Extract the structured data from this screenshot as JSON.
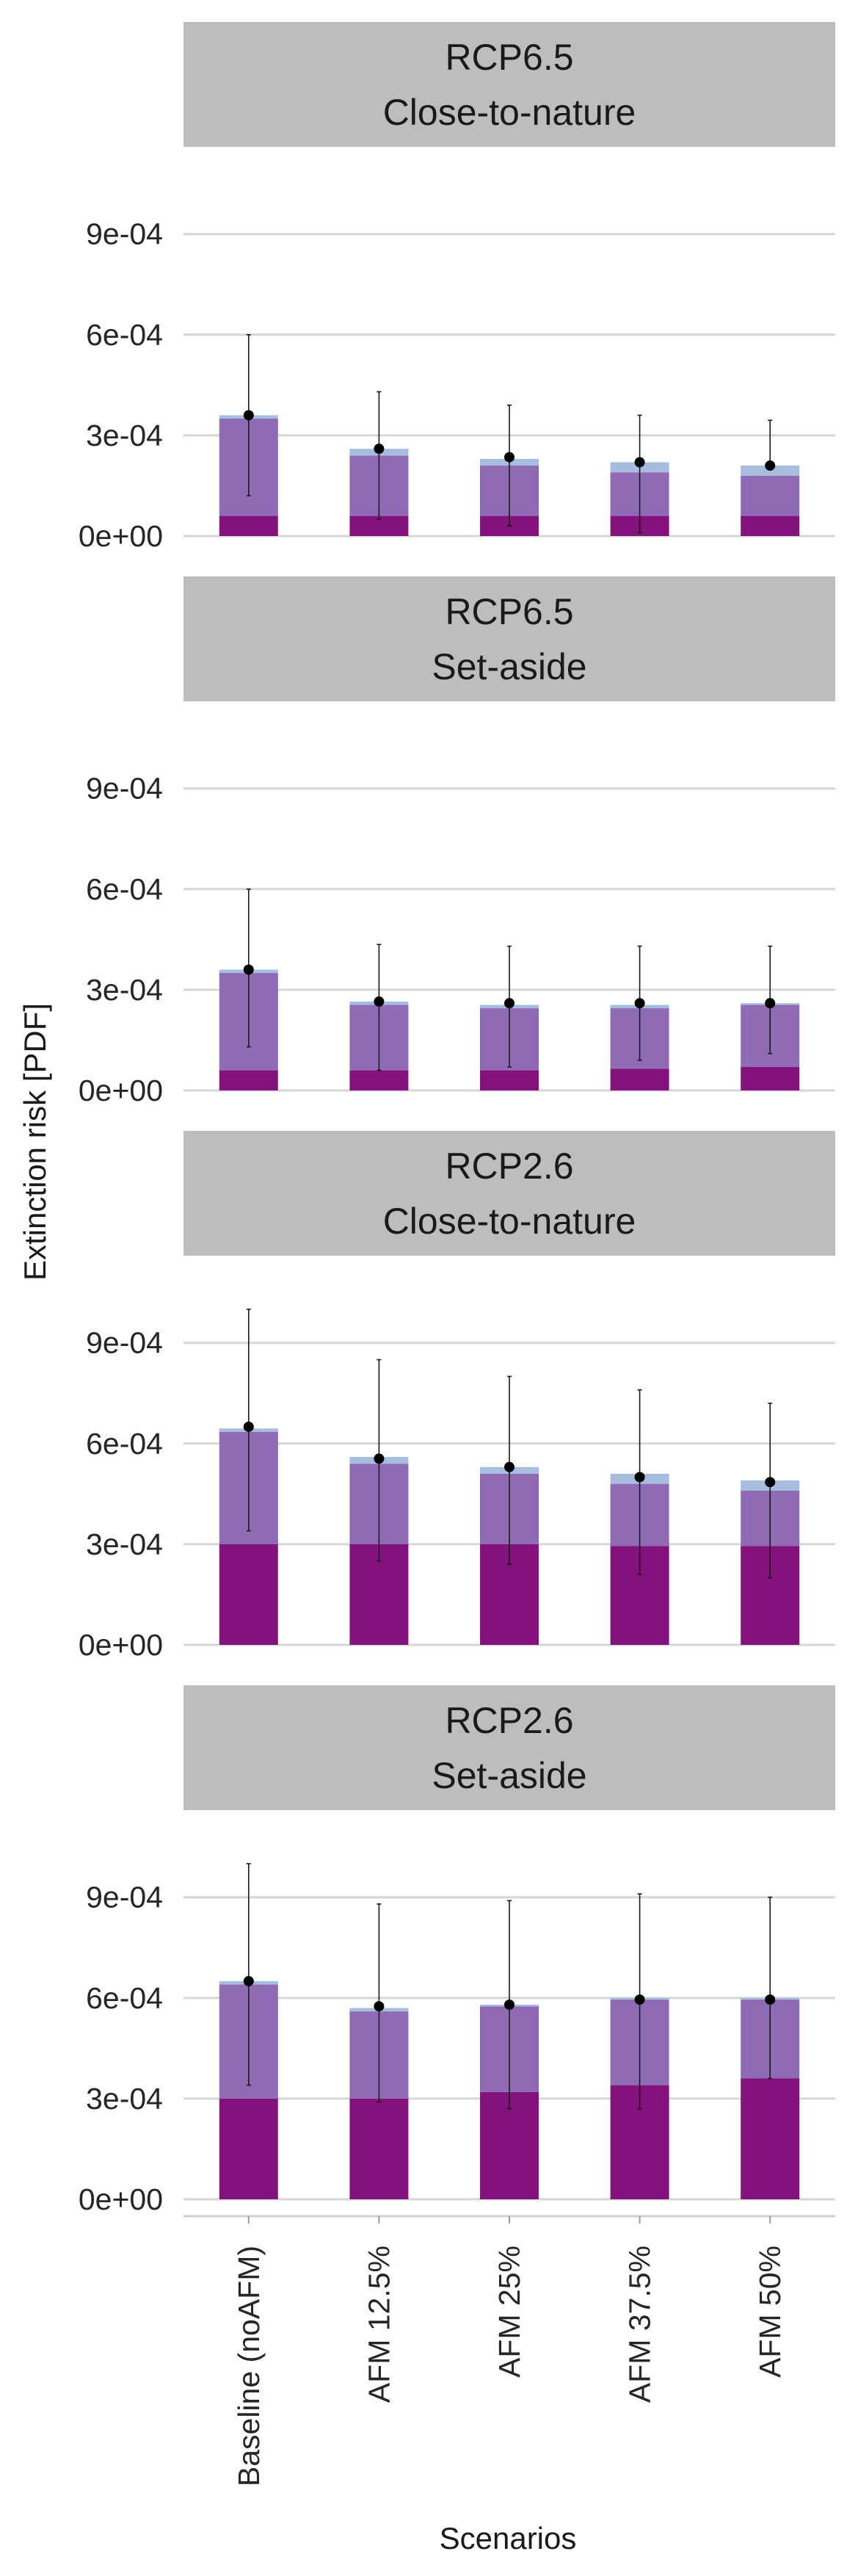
{
  "chart_data": {
    "type": "bar",
    "stacked": true,
    "xlabel": "Scenarios",
    "ylabel": "Extinction risk [PDF]",
    "ylim": [
      0,
      0.00106
    ],
    "y_ticks": [
      {
        "value": 0,
        "label": "0e+00"
      },
      {
        "value": 0.0003,
        "label": "3e-04"
      },
      {
        "value": 0.0006,
        "label": "6e-04"
      },
      {
        "value": 0.0009,
        "label": "9e-04"
      }
    ],
    "categories": [
      "Baseline (noAFM)",
      "AFM 12.5%",
      "AFM 25%",
      "AFM 37.5%",
      "AFM 50%"
    ],
    "colors": {
      "bottom": "#84127c",
      "middle": "#8e6bb4",
      "top": "#a6bde0",
      "strip": "#bdbdbd",
      "grid": "#d6d6d6",
      "error": "#1a1a1a",
      "point": "#000000"
    },
    "grid": true,
    "legend": "none",
    "panels": [
      {
        "strip_line1": "RCP6.5",
        "strip_line2": "Close-to-nature",
        "bottom": [
          6e-05,
          6e-05,
          6e-05,
          6e-05,
          6e-05
        ],
        "middle": [
          0.00029,
          0.00018,
          0.00015,
          0.00013,
          0.00012
        ],
        "top": [
          1e-05,
          2e-05,
          2e-05,
          3e-05,
          3e-05
        ],
        "point": [
          0.00036,
          0.00026,
          0.000235,
          0.00022,
          0.00021
        ],
        "err_low": [
          0.00012,
          5e-05,
          3e-05,
          1e-05,
          0.00021
        ],
        "err_high": [
          0.0006,
          0.00043,
          0.00039,
          0.00036,
          0.000345
        ]
      },
      {
        "strip_line1": "RCP6.5",
        "strip_line2": "Set-aside",
        "bottom": [
          6e-05,
          6e-05,
          6e-05,
          6.5e-05,
          7e-05
        ],
        "middle": [
          0.00029,
          0.000195,
          0.000185,
          0.00018,
          0.000185
        ],
        "top": [
          1e-05,
          1e-05,
          1e-05,
          1e-05,
          5e-06
        ],
        "point": [
          0.00036,
          0.000265,
          0.00026,
          0.00026,
          0.00026
        ],
        "err_low": [
          0.00013,
          6e-05,
          7e-05,
          9e-05,
          0.00011
        ],
        "err_high": [
          0.0006,
          0.000435,
          0.00043,
          0.00043,
          0.00043
        ]
      },
      {
        "strip_line1": "RCP2.6",
        "strip_line2": "Close-to-nature",
        "bottom": [
          0.0003,
          0.0003,
          0.0003,
          0.000295,
          0.000295
        ],
        "middle": [
          0.000335,
          0.00024,
          0.00021,
          0.000185,
          0.000165
        ],
        "top": [
          1e-05,
          2e-05,
          2e-05,
          3e-05,
          3e-05
        ],
        "point": [
          0.00065,
          0.000555,
          0.00053,
          0.0005,
          0.000485
        ],
        "err_low": [
          0.00034,
          0.00025,
          0.00024,
          0.00021,
          0.0002
        ],
        "err_high": [
          0.001,
          0.00085,
          0.0008,
          0.00076,
          0.00072
        ]
      },
      {
        "strip_line1": "RCP2.6",
        "strip_line2": "Set-aside",
        "bottom": [
          0.0003,
          0.0003,
          0.00032,
          0.00034,
          0.00036
        ],
        "middle": [
          0.00034,
          0.00026,
          0.000255,
          0.000255,
          0.000235
        ],
        "top": [
          1e-05,
          1e-05,
          5e-06,
          5e-06,
          5e-06
        ],
        "point": [
          0.00065,
          0.000575,
          0.00058,
          0.000595,
          0.000595
        ],
        "err_low": [
          0.00034,
          0.00029,
          0.00027,
          0.00027,
          0.00036
        ],
        "err_high": [
          0.001,
          0.00088,
          0.00089,
          0.00091,
          0.0009
        ]
      }
    ]
  }
}
